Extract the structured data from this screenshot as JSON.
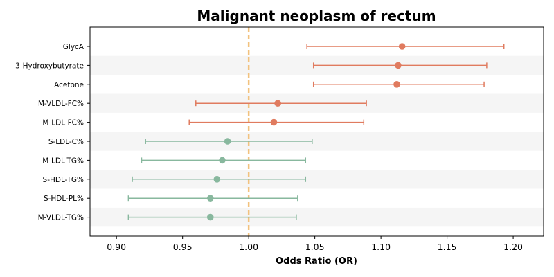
{
  "chart_data": {
    "type": "forest",
    "title": "Malignant neoplasm of rectum",
    "xlabel": "Odds Ratio (OR)",
    "ylabel": "",
    "xlim": [
      0.88,
      1.223
    ],
    "xticks": [
      0.9,
      0.95,
      1.0,
      1.05,
      1.1,
      1.15,
      1.2
    ],
    "xtick_labels": [
      "0.90",
      "0.95",
      "1.00",
      "1.05",
      "1.10",
      "1.15",
      "1.20"
    ],
    "reference_line": 1.0,
    "reference_line_color": "#f2c27e",
    "colors": {
      "positive": "#e07b5f",
      "negative": "#88b89e",
      "stripe": "#f5f5f5"
    },
    "grid": false,
    "rows": [
      {
        "label": "GlycA",
        "or": 1.116,
        "lower": 1.044,
        "upper": 1.193,
        "group": "positive"
      },
      {
        "label": "3-Hydroxybutyrate",
        "or": 1.113,
        "lower": 1.049,
        "upper": 1.18,
        "group": "positive"
      },
      {
        "label": "Acetone",
        "or": 1.112,
        "lower": 1.049,
        "upper": 1.178,
        "group": "positive"
      },
      {
        "label": "M-VLDL-FC%",
        "or": 1.022,
        "lower": 0.96,
        "upper": 1.089,
        "group": "positive"
      },
      {
        "label": "M-LDL-FC%",
        "or": 1.019,
        "lower": 0.955,
        "upper": 1.087,
        "group": "positive"
      },
      {
        "label": "S-LDL-C%",
        "or": 0.984,
        "lower": 0.922,
        "upper": 1.048,
        "group": "negative"
      },
      {
        "label": "M-LDL-TG%",
        "or": 0.98,
        "lower": 0.919,
        "upper": 1.043,
        "group": "negative"
      },
      {
        "label": "S-HDL-TG%",
        "or": 0.976,
        "lower": 0.912,
        "upper": 1.043,
        "group": "negative"
      },
      {
        "label": "S-HDL-PL%",
        "or": 0.971,
        "lower": 0.909,
        "upper": 1.037,
        "group": "negative"
      },
      {
        "label": "M-VLDL-TG%",
        "or": 0.971,
        "lower": 0.909,
        "upper": 1.036,
        "group": "negative"
      }
    ]
  }
}
